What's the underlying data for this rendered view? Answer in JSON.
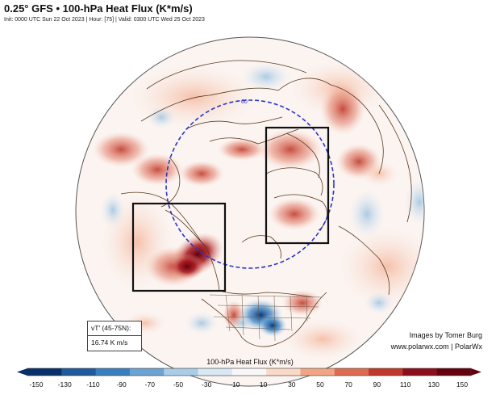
{
  "header": {
    "title": "0.25° GFS • 100-hPa Heat Flux (K*m/s)",
    "subtitle": "Init: 0000 UTC Sun 22 Oct 2023 | Hour: [75] | Valid: 0300 UTC Wed 25 Oct 2023"
  },
  "map": {
    "projection": "north-polar stereographic",
    "latitude_circle_label": "60",
    "colors": {
      "positive": "#c0392b",
      "negative": "#2f6fae",
      "latitude_circle": "#2a36c9",
      "boxes": "#111111"
    },
    "boxes": [
      "western North America / eastern Pacific",
      "Siberia"
    ]
  },
  "stats": {
    "label": "vT' (45-75N):",
    "value": "16.74 K m/s"
  },
  "credit": {
    "line1": "Images by Tomer Burg",
    "line2": "www.polarwx.com | PolarWx"
  },
  "colorbar": {
    "title": "100-hPa Heat Flux (K*m/s)",
    "ticks": [
      "-150",
      "-130",
      "-110",
      "-90",
      "-70",
      "-50",
      "-30",
      "-10",
      "10",
      "30",
      "50",
      "70",
      "90",
      "110",
      "130",
      "150"
    ],
    "colors": [
      "#08306b",
      "#1f5a9c",
      "#3a7fbd",
      "#6ba3d2",
      "#a9cde6",
      "#d8e8f3",
      "#f7f7f7",
      "#fbd9c7",
      "#f2a585",
      "#dd6b52",
      "#c0392b",
      "#8e0d1d",
      "#67000d"
    ]
  }
}
